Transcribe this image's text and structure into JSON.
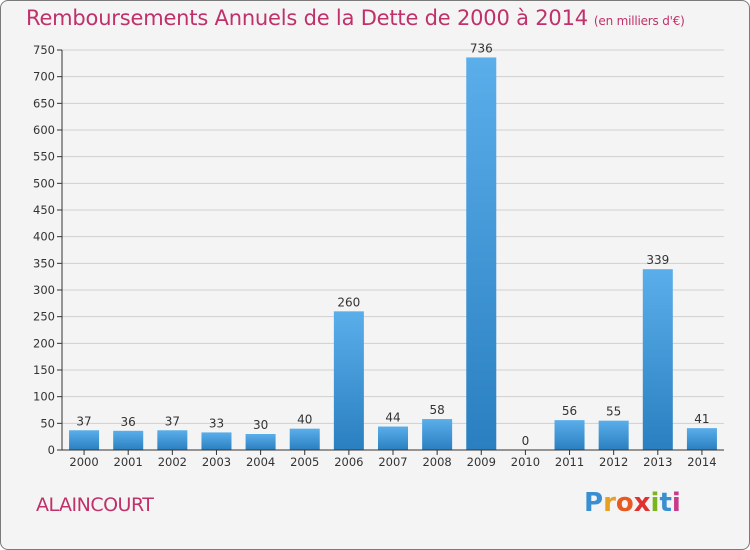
{
  "header": {
    "title": "Remboursements Annuels de la Dette de 2000 à 2014",
    "subtitle": "(en milliers d'€)"
  },
  "footer": {
    "commune": "ALAINCOURT",
    "logo_letters": [
      "P",
      "r",
      "o",
      "x",
      "i",
      "t",
      "i"
    ],
    "logo_colors": [
      "#3a8fd0",
      "#e8a020",
      "#e85a20",
      "#e03030",
      "#7ab51d",
      "#3a8fd0",
      "#c83a8a"
    ]
  },
  "colors": {
    "title": "#c0306a",
    "bar_top": "#5aaeea",
    "bar_bottom": "#2a7fc0",
    "grid": "#cfcfcf",
    "axis": "#333333"
  },
  "chart_data": {
    "type": "bar",
    "title": "Remboursements Annuels de la Dette de 2000 à 2014",
    "subtitle": "(en milliers d'€)",
    "categories": [
      "2000",
      "2001",
      "2002",
      "2003",
      "2004",
      "2005",
      "2006",
      "2007",
      "2008",
      "2009",
      "2010",
      "2011",
      "2012",
      "2013",
      "2014"
    ],
    "values": [
      37,
      36,
      37,
      33,
      30,
      40,
      260,
      44,
      58,
      736,
      0,
      56,
      55,
      339,
      41
    ],
    "data_labels": [
      "37",
      "36",
      "37",
      "33",
      "30",
      "40",
      "260",
      "44",
      "58",
      "736",
      "0",
      "56",
      "55",
      "339",
      "41"
    ],
    "ylim": [
      0,
      750
    ],
    "yticks": [
      0,
      50,
      100,
      150,
      200,
      250,
      300,
      350,
      400,
      450,
      500,
      550,
      600,
      650,
      700,
      750
    ],
    "xlabel": "",
    "ylabel": "",
    "grid": true,
    "legend": "none"
  }
}
